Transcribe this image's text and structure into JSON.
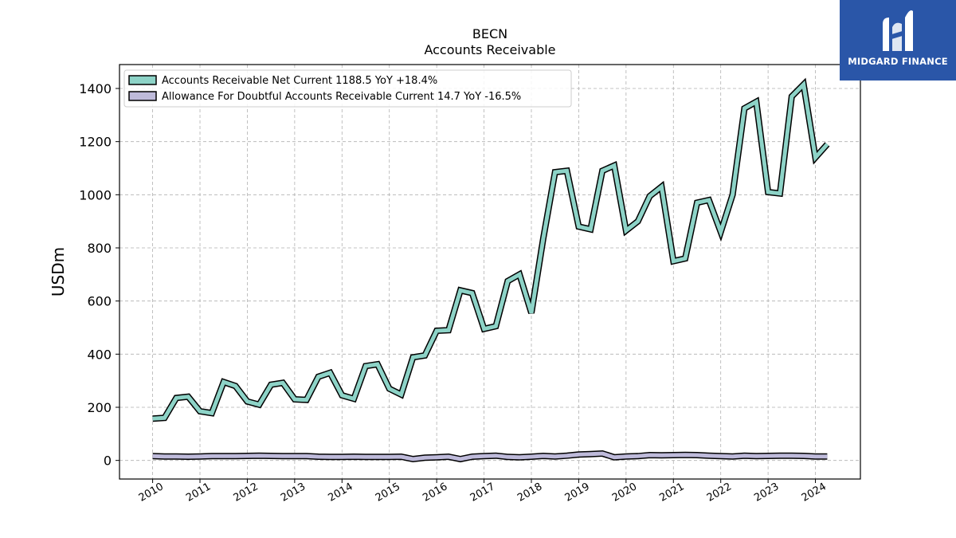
{
  "brand": {
    "name": "MIDGARD FINANCE",
    "color": "#2a56a8",
    "icon": "midgard-logo-icon"
  },
  "chart_data": {
    "type": "line",
    "title": "BECN",
    "subtitle": "Accounts Receivable",
    "xlabel": "",
    "ylabel": "USDm",
    "ylim": [
      -70,
      1490
    ],
    "xlim": [
      2009.3,
      2024.95
    ],
    "grid": true,
    "legend_position": "top-left",
    "yticks": [
      0,
      200,
      400,
      600,
      800,
      1000,
      1200,
      1400
    ],
    "xticks": [
      "2010",
      "2011",
      "2012",
      "2013",
      "2014",
      "2015",
      "2016",
      "2017",
      "2018",
      "2019",
      "2020",
      "2021",
      "2022",
      "2023",
      "2024"
    ],
    "x": [
      2010.0,
      2010.25,
      2010.5,
      2010.75,
      2011.0,
      2011.25,
      2011.5,
      2011.75,
      2012.0,
      2012.25,
      2012.5,
      2012.75,
      2013.0,
      2013.25,
      2013.5,
      2013.75,
      2014.0,
      2014.25,
      2014.5,
      2014.75,
      2015.0,
      2015.25,
      2015.5,
      2015.75,
      2016.0,
      2016.25,
      2016.5,
      2016.75,
      2017.0,
      2017.25,
      2017.5,
      2017.75,
      2018.0,
      2018.25,
      2018.5,
      2018.75,
      2019.0,
      2019.25,
      2019.5,
      2019.75,
      2020.0,
      2020.25,
      2020.5,
      2020.75,
      2021.0,
      2021.25,
      2021.5,
      2021.75,
      2022.0,
      2022.25,
      2022.5,
      2022.75,
      2023.0,
      2023.25,
      2023.5,
      2023.75,
      2024.0,
      2024.25
    ],
    "series": [
      {
        "name": "Accounts Receivable Net Current  1188.5 YoY +18.4%",
        "color": "#8dd3c7",
        "values": [
          157,
          160,
          235,
          240,
          185,
          178,
          295,
          280,
          222,
          210,
          285,
          292,
          230,
          228,
          315,
          330,
          245,
          232,
          355,
          362,
          270,
          248,
          388,
          395,
          488,
          490,
          640,
          630,
          495,
          505,
          675,
          700,
          555,
          835,
          1085,
          1090,
          880,
          870,
          1090,
          1110,
          865,
          900,
          995,
          1030,
          750,
          760,
          970,
          980,
          860,
          1000,
          1325,
          1350,
          1010,
          1005,
          1370,
          1415,
          1140,
          1190
        ]
      },
      {
        "name": "Allowance For Doubtful Accounts Receivable Current  14.7 YoY -16.5%",
        "color": "#bebada",
        "values": [
          16,
          15,
          15,
          14,
          15,
          16,
          16,
          16,
          17,
          18,
          17,
          16,
          16,
          16,
          14,
          13,
          13,
          14,
          13,
          13,
          13,
          14,
          5,
          10,
          12,
          14,
          5,
          14,
          16,
          18,
          13,
          12,
          14,
          17,
          15,
          18,
          22,
          24,
          26,
          12,
          15,
          16,
          20,
          19,
          20,
          21,
          20,
          18,
          16,
          15,
          18,
          16,
          17,
          18,
          18,
          17,
          15,
          15
        ]
      }
    ]
  }
}
